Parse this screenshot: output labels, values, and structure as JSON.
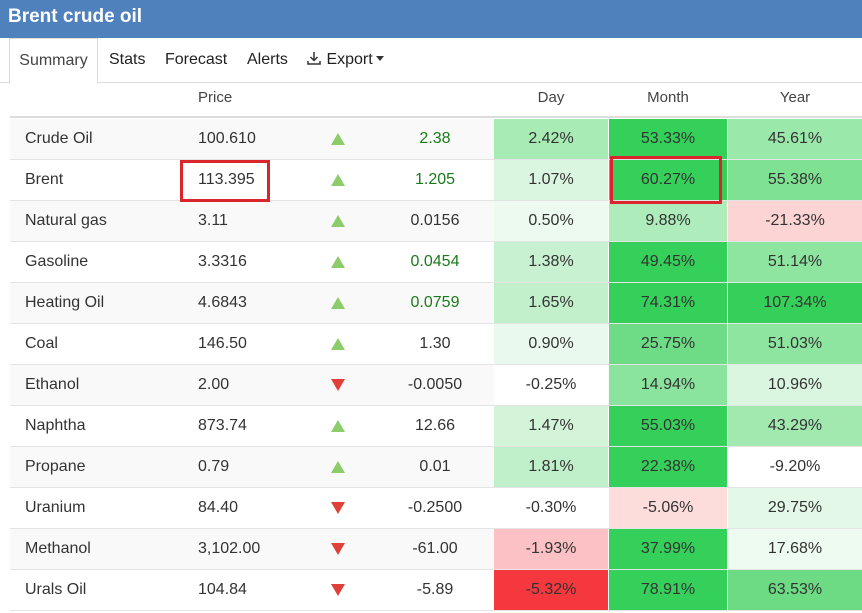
{
  "window": {
    "title": "Brent crude oil"
  },
  "tabs": [
    {
      "label": "Summary",
      "active": true
    },
    {
      "label": "Stats"
    },
    {
      "label": "Forecast"
    },
    {
      "label": "Alerts"
    },
    {
      "label": "Export",
      "icon": "download-icon",
      "dropdown": true
    }
  ],
  "table": {
    "columns": {
      "price": "Price",
      "day": "Day",
      "month": "Month",
      "year": "Year"
    },
    "rows": [
      {
        "name": "Crude Oil",
        "price": "100.610",
        "direction": "up",
        "change": "2.38",
        "change_color": "#1a7a1a",
        "day": "2.42%",
        "day_bg": "#a8ebb5",
        "month": "53.33%",
        "month_bg": "#34d05a",
        "year": "45.61%",
        "year_bg": "#9be8ab"
      },
      {
        "name": "Brent",
        "price": "113.395",
        "direction": "up",
        "change": "1.205",
        "change_color": "#1a7a1a",
        "day": "1.07%",
        "day_bg": "#dbf6e0",
        "month": "60.27%",
        "month_bg": "#34d05a",
        "year": "55.38%",
        "year_bg": "#7fe192"
      },
      {
        "name": "Natural gas",
        "price": "3.11",
        "direction": "up",
        "change": "0.0156",
        "change_color": "#333333",
        "day": "0.50%",
        "day_bg": "#ecfaef",
        "month": "9.88%",
        "month_bg": "#aeecbb",
        "year": "-21.33%",
        "year_bg": "#fcd4d4"
      },
      {
        "name": "Gasoline",
        "price": "3.3316",
        "direction": "up",
        "change": "0.0454",
        "change_color": "#1a7a1a",
        "day": "1.38%",
        "day_bg": "#c7f1d0",
        "month": "49.45%",
        "month_bg": "#34d05a",
        "year": "51.14%",
        "year_bg": "#8ee5a0"
      },
      {
        "name": "Heating Oil",
        "price": "4.6843",
        "direction": "up",
        "change": "0.0759",
        "change_color": "#1a7a1a",
        "day": "1.65%",
        "day_bg": "#c2f0cb",
        "month": "74.31%",
        "month_bg": "#34d05a",
        "year": "107.34%",
        "year_bg": "#34d05a"
      },
      {
        "name": "Coal",
        "price": "146.50",
        "direction": "up",
        "change": "1.30",
        "change_color": "#333333",
        "day": "0.90%",
        "day_bg": "#eaf9ed",
        "month": "25.75%",
        "month_bg": "#6edc86",
        "year": "51.03%",
        "year_bg": "#8ee5a0"
      },
      {
        "name": "Ethanol",
        "price": "2.00",
        "direction": "down",
        "change": "-0.0050",
        "change_color": "#333333",
        "day": "-0.25%",
        "day_bg": "#ffffff",
        "month": "14.94%",
        "month_bg": "#8ae49d",
        "year": "10.96%",
        "year_bg": "#dbf6e0"
      },
      {
        "name": "Naphtha",
        "price": "873.74",
        "direction": "up",
        "change": "12.66",
        "change_color": "#333333",
        "day": "1.47%",
        "day_bg": "#d4f4da",
        "month": "55.03%",
        "month_bg": "#34d05a",
        "year": "43.29%",
        "year_bg": "#a2e9b0"
      },
      {
        "name": "Propane",
        "price": "0.79",
        "direction": "up",
        "change": "0.01",
        "change_color": "#333333",
        "day": "1.81%",
        "day_bg": "#c0f0ca",
        "month": "22.38%",
        "month_bg": "#34d05a",
        "year": "-9.20%",
        "year_bg": "#ffffff"
      },
      {
        "name": "Uranium",
        "price": "84.40",
        "direction": "down",
        "change": "-0.2500",
        "change_color": "#333333",
        "day": "-0.30%",
        "day_bg": "#ffffff",
        "month": "-5.06%",
        "month_bg": "#fddcdc",
        "year": "29.75%",
        "year_bg": "#e4f8e8"
      },
      {
        "name": "Methanol",
        "price": "3,102.00",
        "direction": "down",
        "change": "-61.00",
        "change_color": "#333333",
        "day": "-1.93%",
        "day_bg": "#fbc1c4",
        "month": "37.99%",
        "month_bg": "#34d05a",
        "year": "17.68%",
        "year_bg": "#eefbf1"
      },
      {
        "name": "Urals Oil",
        "price": "104.84",
        "direction": "down",
        "change": "-5.89",
        "change_color": "#333333",
        "day": "-5.32%",
        "day_bg": "#f5373e",
        "month": "78.91%",
        "month_bg": "#34d05a",
        "year": "63.53%",
        "year_bg": "#6cdb83"
      }
    ]
  },
  "colors": {
    "header": "#4f81bd",
    "up_arrow": "#8ccc6a",
    "down_arrow": "#e0403a",
    "highlight": "#d9262b"
  }
}
